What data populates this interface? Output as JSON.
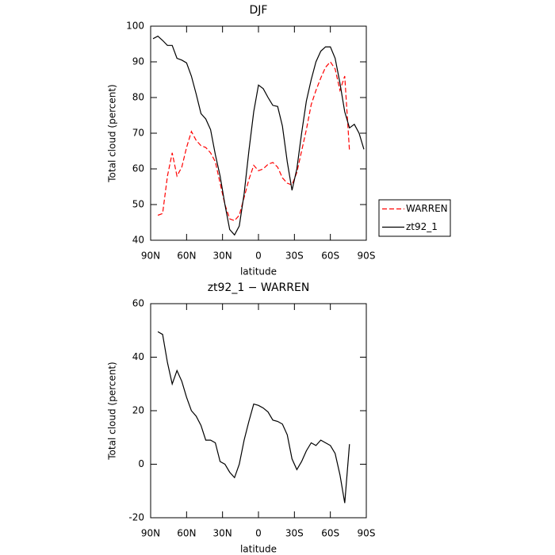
{
  "chart_data": [
    {
      "type": "line",
      "title": "DJF",
      "xlabel": "latitude",
      "ylabel": "Total cloud (percent)",
      "x": [
        88,
        84,
        80,
        76,
        72,
        68,
        64,
        60,
        56,
        52,
        48,
        44,
        40,
        36,
        32,
        28,
        24,
        20,
        16,
        12,
        8,
        4,
        0,
        -4,
        -8,
        -12,
        -16,
        -20,
        -24,
        -28,
        -32,
        -36,
        -40,
        -44,
        -48,
        -52,
        -56,
        -60,
        -64,
        -68,
        -72,
        -76,
        -80,
        -84,
        -88
      ],
      "series": [
        {
          "name": "WARREN",
          "color": "#ff0000",
          "dashed": true,
          "values": [
            null,
            47,
            47.5,
            58,
            64.5,
            58,
            60.5,
            66,
            70.5,
            68,
            66.5,
            66,
            64.5,
            62,
            56,
            50,
            46,
            45.5,
            47,
            52,
            57,
            61,
            59.5,
            60,
            61.3,
            61.8,
            60.5,
            57.5,
            56,
            55.5,
            59,
            65,
            71,
            78,
            82,
            85.5,
            88.5,
            90,
            88,
            82,
            86,
            65,
            null,
            null,
            null
          ]
        },
        {
          "name": "zt92_1",
          "color": "#000000",
          "dashed": false,
          "values": [
            96.5,
            97.2,
            96,
            94.6,
            94.6,
            91,
            90.5,
            89.7,
            86,
            81,
            75.5,
            74,
            71,
            64,
            58,
            50,
            43,
            41.5,
            44,
            53,
            65,
            76,
            83.5,
            82.5,
            80,
            77.8,
            77.5,
            72,
            62,
            54,
            60,
            70,
            79,
            85,
            90,
            93,
            94.2,
            94.2,
            91,
            84,
            76,
            71.5,
            72.5,
            70,
            65.5
          ]
        }
      ],
      "xlim": [
        90,
        -90
      ],
      "xticks": [
        {
          "value": 90,
          "label": "90N"
        },
        {
          "value": 60,
          "label": "60N"
        },
        {
          "value": 30,
          "label": "30N"
        },
        0,
        {
          "value": -30,
          "label": "30S"
        },
        {
          "value": -60,
          "label": "60S"
        },
        {
          "value": -90,
          "label": "90S"
        }
      ],
      "ylim": [
        40,
        100
      ],
      "yticks": [
        40,
        50,
        60,
        70,
        80,
        90,
        100
      ],
      "legend": "right"
    },
    {
      "type": "line",
      "title": "zt92_1 − WARREN",
      "xlabel": "latitude",
      "ylabel": "Total cloud (percent)",
      "x": [
        84,
        80,
        76,
        72,
        68,
        64,
        60,
        56,
        52,
        48,
        44,
        40,
        36,
        32,
        28,
        24,
        20,
        16,
        12,
        8,
        4,
        0,
        -4,
        -8,
        -12,
        -16,
        -20,
        -24,
        -28,
        -32,
        -36,
        -40,
        -44,
        -48,
        -52,
        -56,
        -60,
        -64,
        -68,
        -72,
        -76
      ],
      "color": "#000000",
      "values": [
        49.5,
        48.5,
        38,
        30,
        35,
        31,
        25,
        20,
        18,
        14.5,
        9,
        9,
        8,
        1,
        0,
        -3,
        -5,
        0,
        9,
        16,
        22.5,
        22,
        21,
        19.5,
        16.5,
        16,
        15,
        11,
        2,
        -2,
        1,
        5,
        8,
        7,
        9,
        8,
        7,
        4,
        -4,
        -14.5,
        7.5
      ],
      "xlim": [
        90,
        -90
      ],
      "xticks": [
        {
          "value": 90,
          "label": "90N"
        },
        {
          "value": 60,
          "label": "60N"
        },
        {
          "value": 30,
          "label": "30N"
        },
        0,
        {
          "value": -30,
          "label": "30S"
        },
        {
          "value": -60,
          "label": "60S"
        },
        {
          "value": -90,
          "label": "90S"
        }
      ],
      "ylim": [
        -20,
        60
      ],
      "yticks": [
        -20,
        0,
        20,
        40,
        60
      ]
    }
  ]
}
